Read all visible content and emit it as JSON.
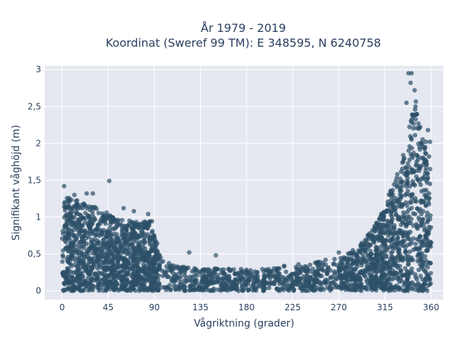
{
  "chart_data": {
    "type": "scatter",
    "title_line1": "År 1979 - 2019",
    "title_line2": "Koordinat (Sweref 99 TM): E 348595, N 6240758",
    "xlabel": "Vågriktning (grader)",
    "ylabel": "Signifikant våghöjd (m)",
    "xlim": [
      -17,
      372
    ],
    "ylim": [
      -0.12,
      3.05
    ],
    "xticks": [
      0,
      45,
      90,
      135,
      180,
      225,
      270,
      315,
      360
    ],
    "xtick_labels": [
      "0",
      "45",
      "90",
      "135",
      "180",
      "225",
      "270",
      "315",
      "360"
    ],
    "yticks": [
      0,
      0.5,
      1,
      1.5,
      2,
      2.5,
      3
    ],
    "ytick_labels": [
      "0",
      "0,5",
      "1",
      "1,5",
      "2",
      "2,5",
      "3"
    ],
    "grid": true,
    "legend": "none",
    "marker_color": "#2c5068",
    "plot_bg": "#e5e8f0",
    "envelope": {
      "x": [
        0,
        10,
        20,
        30,
        45,
        60,
        70,
        80,
        88,
        95,
        110,
        135,
        180,
        225,
        270,
        290,
        300,
        310,
        315,
        320,
        330,
        340,
        345,
        350,
        355,
        360
      ],
      "y_max": [
        1.3,
        1.25,
        1.2,
        1.15,
        1.05,
        0.95,
        0.95,
        0.95,
        0.95,
        0.5,
        0.35,
        0.3,
        0.3,
        0.35,
        0.45,
        0.6,
        0.8,
        1.0,
        1.15,
        1.35,
        1.7,
        2.3,
        2.6,
        2.2,
        1.9,
        1.0
      ]
    },
    "outliers": [
      {
        "x": 2,
        "y": 1.42
      },
      {
        "x": 46,
        "y": 1.49
      },
      {
        "x": 24,
        "y": 1.32
      },
      {
        "x": 30,
        "y": 1.32
      },
      {
        "x": 338,
        "y": 2.95
      },
      {
        "x": 341,
        "y": 2.95
      },
      {
        "x": 340,
        "y": 2.82
      },
      {
        "x": 344,
        "y": 2.72
      },
      {
        "x": 336,
        "y": 2.55
      },
      {
        "x": 357,
        "y": 2.18
      },
      {
        "x": 359,
        "y": 2.02
      },
      {
        "x": 355,
        "y": 2.02
      },
      {
        "x": 358,
        "y": 1.82
      },
      {
        "x": 359,
        "y": 1.65
      },
      {
        "x": 359,
        "y": 1.45
      },
      {
        "x": 320,
        "y": 1.3
      },
      {
        "x": 305,
        "y": 0.88
      },
      {
        "x": 300,
        "y": 0.75
      },
      {
        "x": 292,
        "y": 0.62
      },
      {
        "x": 270,
        "y": 0.52
      },
      {
        "x": 150,
        "y": 0.48
      },
      {
        "x": 124,
        "y": 0.52
      },
      {
        "x": 70,
        "y": 1.08
      },
      {
        "x": 84,
        "y": 1.04
      },
      {
        "x": 12,
        "y": 1.3
      },
      {
        "x": 60,
        "y": 1.12
      },
      {
        "x": 235,
        "y": 0.02
      },
      {
        "x": 257,
        "y": 0.42
      },
      {
        "x": 210,
        "y": 0.3
      }
    ]
  }
}
